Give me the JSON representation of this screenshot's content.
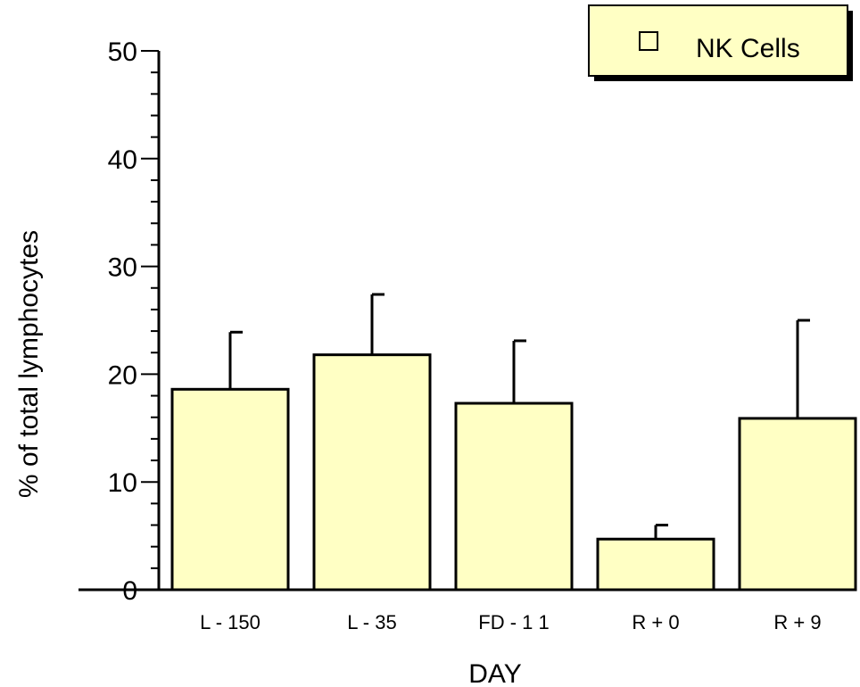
{
  "chart_data": {
    "type": "bar",
    "categories": [
      "L - 150",
      "L - 35",
      "FD - 1 1",
      "R + 0",
      "R + 9"
    ],
    "series": [
      {
        "name": "NK Cells",
        "values": [
          18.6,
          21.8,
          17.3,
          4.7,
          15.9
        ],
        "error_plus": [
          5.3,
          5.6,
          5.8,
          1.3,
          9.1
        ]
      }
    ],
    "xlabel": "DAY",
    "ylabel": "% of total lymphocytes",
    "ylim": [
      0,
      50
    ],
    "yticks": [
      0,
      10,
      20,
      30,
      40,
      50
    ],
    "grid": false,
    "legend_position": "top-right",
    "colors": {
      "bar_fill": "#ffffc4",
      "bar_stroke": "#000000",
      "legend_fill": "#ffffc4"
    }
  }
}
